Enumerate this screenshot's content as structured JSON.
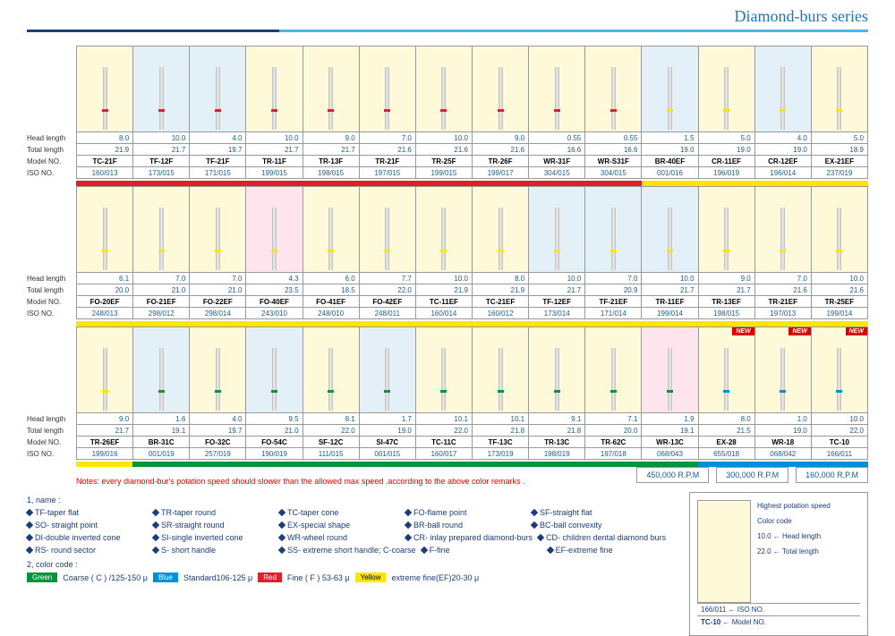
{
  "title": "Diamond-burs series",
  "colors": {
    "yellow_bg": "#fef9d8",
    "blue_bg": "#e4f0f7",
    "pink_bg": "#fde4ed",
    "red": "#d8232a",
    "yellow": "#ffe600",
    "green": "#00953b",
    "blue": "#0090d7",
    "text_blue": "#1a5c8c"
  },
  "row_labels": [
    "Head length",
    "Total length",
    "Model NO.",
    "ISO NO."
  ],
  "rows": [
    {
      "products": [
        {
          "bg": "#fef9d8",
          "band": "#d8232a",
          "hl": "8.0",
          "tl": "21.9",
          "model": "TC-21F",
          "iso": "160/013"
        },
        {
          "bg": "#e4f0f7",
          "band": "#d8232a",
          "hl": "10.0",
          "tl": "21.7",
          "model": "TF-12F",
          "iso": "173/015"
        },
        {
          "bg": "#e4f0f7",
          "band": "#d8232a",
          "hl": "4.0",
          "tl": "19.7",
          "model": "TF-21F",
          "iso": "171/015"
        },
        {
          "bg": "#fef9d8",
          "band": "#d8232a",
          "hl": "10.0",
          "tl": "21.7",
          "model": "TR-11F",
          "iso": "199/015"
        },
        {
          "bg": "#fef9d8",
          "band": "#d8232a",
          "hl": "9.0",
          "tl": "21.7",
          "model": "TR-13F",
          "iso": "198/015"
        },
        {
          "bg": "#fef9d8",
          "band": "#d8232a",
          "hl": "7.0",
          "tl": "21.6",
          "model": "TR-21F",
          "iso": "197/015"
        },
        {
          "bg": "#fef9d8",
          "band": "#d8232a",
          "hl": "10.0",
          "tl": "21.6",
          "model": "TR-25F",
          "iso": "199/015"
        },
        {
          "bg": "#fef9d8",
          "band": "#d8232a",
          "hl": "9.0",
          "tl": "21.6",
          "model": "TR-26F",
          "iso": "199/017"
        },
        {
          "bg": "#fef9d8",
          "band": "#d8232a",
          "hl": "0.55",
          "tl": "16.6",
          "model": "WR-31F",
          "iso": "304/015"
        },
        {
          "bg": "#fef9d8",
          "band": "#d8232a",
          "hl": "0.55",
          "tl": "16.6",
          "model": "WR-S31F",
          "iso": "304/015"
        },
        {
          "bg": "#e4f0f7",
          "band": "#ffe600",
          "hl": "1.5",
          "tl": "19.0",
          "model": "BR-40EF",
          "iso": "001/016"
        },
        {
          "bg": "#fef9d8",
          "band": "#ffe600",
          "hl": "5.0",
          "tl": "19.0",
          "model": "CR-11EF",
          "iso": "196/019"
        },
        {
          "bg": "#e4f0f7",
          "band": "#ffe600",
          "hl": "4.0",
          "tl": "19.0",
          "model": "CR-12EF",
          "iso": "196/014"
        },
        {
          "bg": "#fef9d8",
          "band": "#ffe600",
          "hl": "5.0",
          "tl": "18.9",
          "model": "EX-21EF",
          "iso": "237/019"
        }
      ],
      "bar": [
        "#d8232a",
        "#d8232a",
        "#d8232a",
        "#d8232a",
        "#d8232a",
        "#d8232a",
        "#d8232a",
        "#d8232a",
        "#d8232a",
        "#d8232a",
        "#ffe600",
        "#ffe600",
        "#ffe600",
        "#ffe600"
      ]
    },
    {
      "products": [
        {
          "bg": "#fef9d8",
          "band": "#ffe600",
          "hl": "6.1",
          "tl": "20.0",
          "model": "FO-20EF",
          "iso": "248/013"
        },
        {
          "bg": "#fef9d8",
          "band": "#ffe600",
          "hl": "7.0",
          "tl": "21.0",
          "model": "FO-21EF",
          "iso": "298/012"
        },
        {
          "bg": "#fef9d8",
          "band": "#ffe600",
          "hl": "7.0",
          "tl": "21.0",
          "model": "FO-22EF",
          "iso": "298/014"
        },
        {
          "bg": "#fde4ed",
          "band": "#ffe600",
          "hl": "4.3",
          "tl": "23.5",
          "model": "FO-40EF",
          "iso": "243/010"
        },
        {
          "bg": "#fef9d8",
          "band": "#ffe600",
          "hl": "6.0",
          "tl": "18.5",
          "model": "FO-41EF",
          "iso": "248/010"
        },
        {
          "bg": "#fef9d8",
          "band": "#ffe600",
          "hl": "7.7",
          "tl": "22.0",
          "model": "FO-42EF",
          "iso": "248/011"
        },
        {
          "bg": "#fef9d8",
          "band": "#ffe600",
          "hl": "10.0",
          "tl": "21.9",
          "model": "TC-11EF",
          "iso": "160/014"
        },
        {
          "bg": "#fef9d8",
          "band": "#ffe600",
          "hl": "8.0",
          "tl": "21.9",
          "model": "TC-21EF",
          "iso": "160/012"
        },
        {
          "bg": "#e4f0f7",
          "band": "#ffe600",
          "hl": "10.0",
          "tl": "21.7",
          "model": "TF-12EF",
          "iso": "173/014"
        },
        {
          "bg": "#e4f0f7",
          "band": "#ffe600",
          "hl": "7.0",
          "tl": "20.9",
          "model": "TF-21EF",
          "iso": "171/014"
        },
        {
          "bg": "#e4f0f7",
          "band": "#ffe600",
          "hl": "10.0",
          "tl": "21.7",
          "model": "TR-11EF",
          "iso": "199/014"
        },
        {
          "bg": "#fef9d8",
          "band": "#ffe600",
          "hl": "9.0",
          "tl": "21.7",
          "model": "TR-13EF",
          "iso": "198/015"
        },
        {
          "bg": "#fef9d8",
          "band": "#ffe600",
          "hl": "7.0",
          "tl": "21.6",
          "model": "TR-21EF",
          "iso": "197/013"
        },
        {
          "bg": "#fef9d8",
          "band": "#ffe600",
          "hl": "10.0",
          "tl": "21.6",
          "model": "TR-25EF",
          "iso": "199/014"
        }
      ],
      "bar": [
        "#ffe600",
        "#ffe600",
        "#ffe600",
        "#ffe600",
        "#ffe600",
        "#ffe600",
        "#ffe600",
        "#ffe600",
        "#ffe600",
        "#ffe600",
        "#ffe600",
        "#ffe600",
        "#ffe600",
        "#ffe600"
      ]
    },
    {
      "products": [
        {
          "bg": "#fef9d8",
          "band": "#ffe600",
          "hl": "9.0",
          "tl": "21.7",
          "model": "TR-26EF",
          "iso": "199/016"
        },
        {
          "bg": "#e4f0f7",
          "band": "#00953b",
          "hl": "1.6",
          "tl": "19.1",
          "model": "BR-31C",
          "iso": "001/019"
        },
        {
          "bg": "#fef9d8",
          "band": "#00953b",
          "hl": "4.0",
          "tl": "19.7",
          "model": "FO-32C",
          "iso": "257/019"
        },
        {
          "bg": "#e4f0f7",
          "band": "#00953b",
          "hl": "9.5",
          "tl": "21.0",
          "model": "FO-54C",
          "iso": "190/019"
        },
        {
          "bg": "#fef9d8",
          "band": "#00953b",
          "hl": "8.1",
          "tl": "22.0",
          "model": "SF-12C",
          "iso": "111/015"
        },
        {
          "bg": "#e4f0f7",
          "band": "#00953b",
          "hl": "1.7",
          "tl": "19.0",
          "model": "SI-47C",
          "iso": "001/015"
        },
        {
          "bg": "#fef9d8",
          "band": "#00953b",
          "hl": "10.1",
          "tl": "22.0",
          "model": "TC-11C",
          "iso": "160/017"
        },
        {
          "bg": "#fef9d8",
          "band": "#00953b",
          "hl": "10.1",
          "tl": "21.8",
          "model": "TF-13C",
          "iso": "173/019"
        },
        {
          "bg": "#fef9d8",
          "band": "#00953b",
          "hl": "9.1",
          "tl": "21.8",
          "model": "TR-13C",
          "iso": "198/019"
        },
        {
          "bg": "#fef9d8",
          "band": "#00953b",
          "hl": "7.1",
          "tl": "20.0",
          "model": "TR-62C",
          "iso": "197/018"
        },
        {
          "bg": "#fde4ed",
          "band": "#00953b",
          "hl": "1.9",
          "tl": "19.1",
          "model": "WR-13C",
          "iso": "068/043"
        },
        {
          "bg": "#fef9d8",
          "band": "#0090d7",
          "hl": "8.0",
          "tl": "21.5",
          "model": "EX-28",
          "iso": "655/018",
          "new": true
        },
        {
          "bg": "#fef9d8",
          "band": "#0090d7",
          "hl": "1.0",
          "tl": "19.0",
          "model": "WR-18",
          "iso": "068/042",
          "new": true
        },
        {
          "bg": "#fef9d8",
          "band": "#0090d7",
          "hl": "10.0",
          "tl": "22.0",
          "model": "TC-10",
          "iso": "166/011",
          "new": true
        }
      ],
      "bar": [
        "#ffe600",
        "#00953b",
        "#00953b",
        "#00953b",
        "#00953b",
        "#00953b",
        "#00953b",
        "#00953b",
        "#00953b",
        "#00953b",
        "#00953b",
        "#0090d7",
        "#0090d7",
        "#0090d7"
      ]
    }
  ],
  "notes": "Notes: every diamond-bur's potation speed should slower than the allowed max speed .according to the above color remarks .",
  "rpm": [
    "450,000 R.P.M",
    "300,000 R.P.M",
    "160,000 R.P.M"
  ],
  "name_title": "1, name :",
  "names": [
    "TF-taper flat",
    "TR-taper round",
    "TC-taper cone",
    "FO-flame point",
    "SF-straight flat",
    "SO- straight point",
    "SR-straight round",
    "EX-special shape",
    "BR-ball round",
    "BC-ball convexity",
    "DI-double inverted cone",
    "SI-single inverted cone",
    "WR-wheel round",
    "CR- inlay prepared diamond-burs",
    "CD- children dental diamond burs",
    "RS- round sector",
    "S- short handle",
    "SS- extreme short handle; C-coarse",
    "F-fine",
    "EF-extreme fine"
  ],
  "color_title": "2, color code :",
  "color_codes": [
    {
      "label": "Green",
      "bg": "#00953b",
      "desc": "Coarse ( C ) /125-150 μ"
    },
    {
      "label": "Blue",
      "bg": "#0090d7",
      "desc": "Standard106-125 μ"
    },
    {
      "label": "Red",
      "bg": "#d8232a",
      "desc": "Fine ( F ) 53-63 μ"
    },
    {
      "label": "Yellow",
      "bg": "#ffe600",
      "desc": "extreme fine(EF)20-30 μ",
      "txt": "#000"
    }
  ],
  "diagram": {
    "labels": [
      "Highest potation speed",
      "Color code",
      "Head length",
      "Total length",
      "ISO NO.",
      "Model NO."
    ],
    "hl": "10.0",
    "tl": "22.0",
    "iso": "166/011",
    "model": "TC-10"
  }
}
